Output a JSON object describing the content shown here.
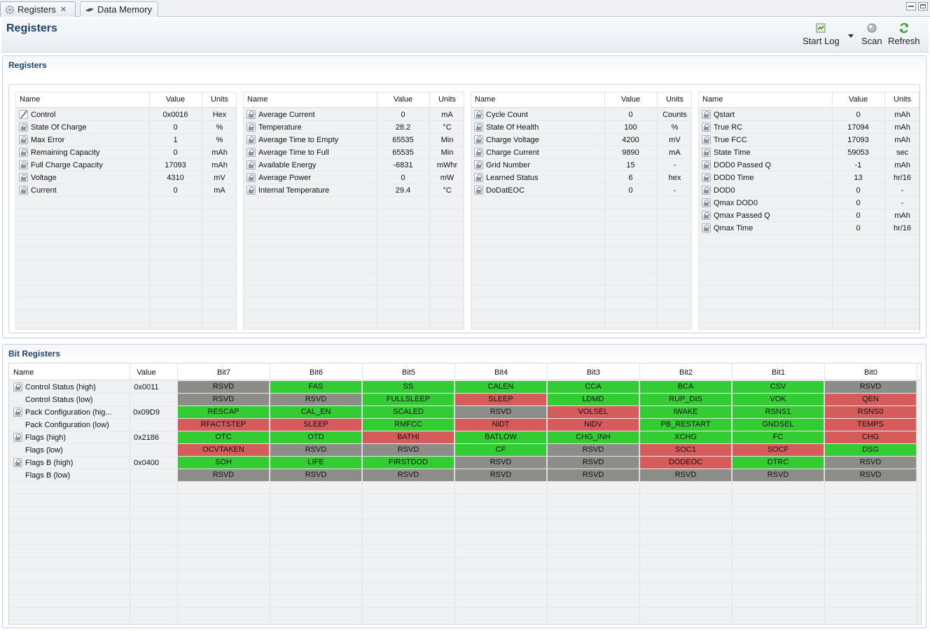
{
  "tabs": [
    {
      "label": "Registers",
      "active": true,
      "icon": "gear-icon"
    },
    {
      "label": "Data Memory",
      "active": false,
      "icon": "chip-icon"
    }
  ],
  "header": {
    "title": "Registers",
    "toolbar": {
      "start_log": "Start Log",
      "scan": "Scan",
      "refresh": "Refresh"
    }
  },
  "registers": {
    "section_title": "Registers",
    "col_headers": {
      "name": "Name",
      "value": "Value",
      "units": "Units"
    },
    "tables": [
      {
        "rows": [
          {
            "name": "Control",
            "value": "0x0016",
            "units": "Hex",
            "icon": "pencil"
          },
          {
            "name": "State Of Charge",
            "value": "0",
            "units": "%",
            "icon": "lock"
          },
          {
            "name": "Max Error",
            "value": "1",
            "units": "%",
            "icon": "lock"
          },
          {
            "name": "Remaining Capacity",
            "value": "0",
            "units": "mAh",
            "icon": "lock"
          },
          {
            "name": "Full Charge Capacity",
            "value": "17093",
            "units": "mAh",
            "icon": "lock"
          },
          {
            "name": "Voltage",
            "value": "4310",
            "units": "mV",
            "icon": "lock"
          },
          {
            "name": "Current",
            "value": "0",
            "units": "mA",
            "icon": "lock"
          }
        ]
      },
      {
        "rows": [
          {
            "name": "Average Current",
            "value": "0",
            "units": "mA",
            "icon": "lock"
          },
          {
            "name": "Temperature",
            "value": "28.2",
            "units": "°C",
            "icon": "lock"
          },
          {
            "name": "Average Time to Empty",
            "value": "65535",
            "units": "Min",
            "icon": "lock"
          },
          {
            "name": "Average Time to Full",
            "value": "65535",
            "units": "Min",
            "icon": "lock"
          },
          {
            "name": "Available Energy",
            "value": "-6831",
            "units": "mWhr",
            "icon": "lock"
          },
          {
            "name": "Average Power",
            "value": "0",
            "units": "mW",
            "icon": "lock"
          },
          {
            "name": "Internal Temperature",
            "value": "29.4",
            "units": "°C",
            "icon": "lock"
          }
        ]
      },
      {
        "rows": [
          {
            "name": "Cycle Count",
            "value": "0",
            "units": "Counts",
            "icon": "lock"
          },
          {
            "name": "State Of Health",
            "value": "100",
            "units": "%",
            "icon": "lock"
          },
          {
            "name": "Charge Voltage",
            "value": "4200",
            "units": "mV",
            "icon": "lock"
          },
          {
            "name": "Charge Current",
            "value": "9890",
            "units": "mA",
            "icon": "lock"
          },
          {
            "name": "Grid Number",
            "value": "15",
            "units": "-",
            "icon": "lock"
          },
          {
            "name": "Learned Status",
            "value": "6",
            "units": "hex",
            "icon": "lock"
          },
          {
            "name": "DoDatEOC",
            "value": "0",
            "units": "-",
            "icon": "lock"
          }
        ]
      },
      {
        "rows": [
          {
            "name": "Qstart",
            "value": "0",
            "units": "mAh",
            "icon": "lock"
          },
          {
            "name": "True RC",
            "value": "17094",
            "units": "mAh",
            "icon": "lock"
          },
          {
            "name": "True FCC",
            "value": "17093",
            "units": "mAh",
            "icon": "lock"
          },
          {
            "name": "State Time",
            "value": "59053",
            "units": "sec",
            "icon": "lock"
          },
          {
            "name": "DOD0 Passed Q",
            "value": "-1",
            "units": "mAh",
            "icon": "lock"
          },
          {
            "name": "DOD0 Time",
            "value": "13",
            "units": "hr/16",
            "icon": "lock"
          },
          {
            "name": "DOD0",
            "value": "0",
            "units": "-",
            "icon": "lock"
          },
          {
            "name": "Qmax DOD0",
            "value": "0",
            "units": "-",
            "icon": "lock"
          },
          {
            "name": "Qmax Passed Q",
            "value": "0",
            "units": "mAh",
            "icon": "lock"
          },
          {
            "name": "Qmax Time",
            "value": "0",
            "units": "hr/16",
            "icon": "lock"
          }
        ]
      }
    ]
  },
  "bit_registers": {
    "section_title": "Bit Registers",
    "col_headers": [
      "Name",
      "Value",
      "Bit7",
      "Bit6",
      "Bit5",
      "Bit4",
      "Bit3",
      "Bit2",
      "Bit1",
      "Bit0"
    ],
    "colors": {
      "green": "#33cc33",
      "red": "#d65c5c",
      "gray": "#8c8c88"
    },
    "rows": [
      {
        "name": "Control Status (high)",
        "value": "0x0011",
        "lock": true,
        "bits": [
          [
            "RSVD",
            "gray"
          ],
          [
            "FAS",
            "green"
          ],
          [
            "SS",
            "green"
          ],
          [
            "CALEN",
            "green"
          ],
          [
            "CCA",
            "green"
          ],
          [
            "BCA",
            "green"
          ],
          [
            "CSV",
            "green"
          ],
          [
            "RSVD",
            "gray"
          ]
        ]
      },
      {
        "name": "Control Status (low)",
        "value": "",
        "lock": false,
        "bits": [
          [
            "RSVD",
            "gray"
          ],
          [
            "RSVD",
            "gray"
          ],
          [
            "FULLSLEEP",
            "green"
          ],
          [
            "SLEEP",
            "red"
          ],
          [
            "LDMD",
            "green"
          ],
          [
            "RUP_DIS",
            "green"
          ],
          [
            "VOK",
            "green"
          ],
          [
            "QEN",
            "red"
          ]
        ]
      },
      {
        "name": "Pack Configuration (hig...",
        "value": "0x09D9",
        "lock": true,
        "bits": [
          [
            "RESCAP",
            "green"
          ],
          [
            "CAL_EN",
            "green"
          ],
          [
            "SCALED",
            "green"
          ],
          [
            "RSVD",
            "gray"
          ],
          [
            "VOLSEL",
            "red"
          ],
          [
            "IWAKE",
            "green"
          ],
          [
            "RSNS1",
            "green"
          ],
          [
            "RSNS0",
            "red"
          ]
        ]
      },
      {
        "name": "Pack Configuration (low)",
        "value": "",
        "lock": false,
        "bits": [
          [
            "RFACTSTEP",
            "red"
          ],
          [
            "SLEEP",
            "red"
          ],
          [
            "RMFCC",
            "green"
          ],
          [
            "NiDT",
            "red"
          ],
          [
            "NiDV",
            "red"
          ],
          [
            "PB_RESTART",
            "green"
          ],
          [
            "GNDSEL",
            "green"
          ],
          [
            "TEMPS",
            "red"
          ]
        ]
      },
      {
        "name": "Flags (high)",
        "value": "0x2186",
        "lock": true,
        "bits": [
          [
            "OTC",
            "green"
          ],
          [
            "OTD",
            "green"
          ],
          [
            "BATHI",
            "red"
          ],
          [
            "BATLOW",
            "green"
          ],
          [
            "CHG_INH",
            "green"
          ],
          [
            "XCHG",
            "green"
          ],
          [
            "FC",
            "green"
          ],
          [
            "CHG",
            "red"
          ]
        ]
      },
      {
        "name": "Flags (low)",
        "value": "",
        "lock": false,
        "bits": [
          [
            "OCVTAKEN",
            "red"
          ],
          [
            "RSVD",
            "gray"
          ],
          [
            "RSVD",
            "gray"
          ],
          [
            "CF",
            "green"
          ],
          [
            "RSVD",
            "gray"
          ],
          [
            "SOC1",
            "red"
          ],
          [
            "SOCF",
            "red"
          ],
          [
            "DSG",
            "green"
          ]
        ]
      },
      {
        "name": "Flags B (high)",
        "value": "0x0400",
        "lock": true,
        "bits": [
          [
            "SOH",
            "green"
          ],
          [
            "LIFE",
            "green"
          ],
          [
            "FIRSTDOD",
            "green"
          ],
          [
            "RSVD",
            "gray"
          ],
          [
            "RSVD",
            "gray"
          ],
          [
            "DODEOC",
            "red"
          ],
          [
            "DTRC",
            "green"
          ],
          [
            "RSVD",
            "gray"
          ]
        ]
      },
      {
        "name": "Flags B (low)",
        "value": "",
        "lock": false,
        "bits": [
          [
            "RSVD",
            "gray"
          ],
          [
            "RSVD",
            "gray"
          ],
          [
            "RSVD",
            "gray"
          ],
          [
            "RSVD",
            "gray"
          ],
          [
            "RSVD",
            "gray"
          ],
          [
            "RSVD",
            "gray"
          ],
          [
            "RSVD",
            "gray"
          ],
          [
            "RSVD",
            "gray"
          ]
        ]
      }
    ]
  }
}
